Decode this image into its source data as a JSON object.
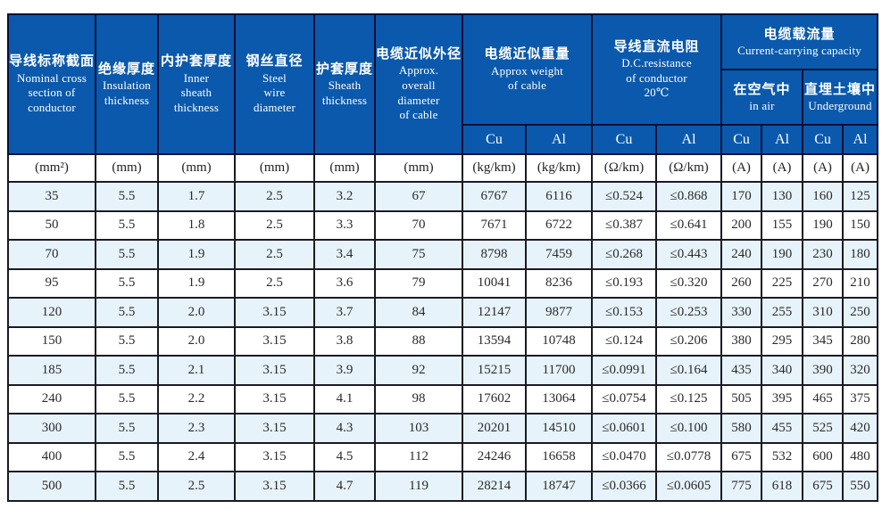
{
  "colors": {
    "header_bg": "#0b59ac",
    "header_border": "#0a1038",
    "grid_border": "#1a1a24",
    "row_stripe": "#e7f3fb",
    "header_text": "#ffffff",
    "body_text": "#2a2a2a"
  },
  "header": {
    "columns": [
      {
        "zh": "导线标称截面",
        "en": "Nominal  cross\nsection of\nconductor"
      },
      {
        "zh": "绝缘厚度",
        "en": "Insulation\nthickness"
      },
      {
        "zh": "内护套厚度",
        "en": "Inner\nsheath\nthickness"
      },
      {
        "zh": "钢丝直径",
        "en": "Steel\nwire\ndiameter"
      },
      {
        "zh": "护套厚度",
        "en": "Sheath\nthickness"
      },
      {
        "zh": "电缆近似外径",
        "en": "Approx.\noverall\ndiameter\nof cable"
      }
    ],
    "weight_group": {
      "zh": "电缆近似重量",
      "en": "Approx weight\nof cable"
    },
    "resistance_group": {
      "zh": "导线直流电阻",
      "en": "D.C.resistance\nof conductor\n20℃"
    },
    "capacity_group": {
      "zh": "电缆载流量",
      "en": "Current-carrying capacity"
    },
    "air_subgroup": {
      "zh": "在空气中",
      "en": "in air"
    },
    "underground_subgroup": {
      "zh": "直埋土壤中",
      "en": "Underground"
    },
    "metals": [
      "Cu",
      "Al",
      "Cu",
      "Al",
      "Cu",
      "Al",
      "Cu",
      "Al"
    ],
    "units": [
      "(mm²)",
      "(mm)",
      "(mm)",
      "(mm)",
      "(mm)",
      "(mm)",
      "(kg/km)",
      "(kg/km)",
      "(Ω/km)",
      "(Ω/km)",
      "(A)",
      "(A)",
      "(A)",
      "(A)"
    ]
  },
  "rows": [
    [
      "35",
      "5.5",
      "1.7",
      "2.5",
      "3.2",
      "67",
      "6767",
      "6116",
      "≤0.524",
      "≤0.868",
      "170",
      "130",
      "160",
      "125"
    ],
    [
      "50",
      "5.5",
      "1.8",
      "2.5",
      "3.3",
      "70",
      "7671",
      "6722",
      "≤0.387",
      "≤0.641",
      "200",
      "155",
      "190",
      "150"
    ],
    [
      "70",
      "5.5",
      "1.9",
      "2.5",
      "3.4",
      "75",
      "8798",
      "7459",
      "≤0.268",
      "≤0.443",
      "240",
      "190",
      "230",
      "180"
    ],
    [
      "95",
      "5.5",
      "1.9",
      "2.5",
      "3.6",
      "79",
      "10041",
      "8236",
      "≤0.193",
      "≤0.320",
      "260",
      "225",
      "270",
      "210"
    ],
    [
      "120",
      "5.5",
      "2.0",
      "3.15",
      "3.7",
      "84",
      "12147",
      "9877",
      "≤0.153",
      "≤0.253",
      "330",
      "255",
      "310",
      "250"
    ],
    [
      "150",
      "5.5",
      "2.0",
      "3.15",
      "3.8",
      "88",
      "13594",
      "10748",
      "≤0.124",
      "≤0.206",
      "380",
      "295",
      "345",
      "280"
    ],
    [
      "185",
      "5.5",
      "2.1",
      "3.15",
      "3.9",
      "92",
      "15215",
      "11700",
      "≤0.0991",
      "≤0.164",
      "435",
      "340",
      "390",
      "320"
    ],
    [
      "240",
      "5.5",
      "2.2",
      "3.15",
      "4.1",
      "98",
      "17602",
      "13064",
      "≤0.0754",
      "≤0.125",
      "505",
      "395",
      "465",
      "375"
    ],
    [
      "300",
      "5.5",
      "2.3",
      "3.15",
      "4.3",
      "103",
      "20201",
      "14510",
      "≤0.0601",
      "≤0.100",
      "580",
      "455",
      "525",
      "420"
    ],
    [
      "400",
      "5.5",
      "2.4",
      "3.15",
      "4.5",
      "112",
      "24246",
      "16658",
      "≤0.0470",
      "≤0.0778",
      "675",
      "532",
      "600",
      "480"
    ],
    [
      "500",
      "5.5",
      "2.5",
      "3.15",
      "4.7",
      "119",
      "28214",
      "18747",
      "≤0.0366",
      "≤0.0605",
      "775",
      "618",
      "675",
      "550"
    ]
  ]
}
